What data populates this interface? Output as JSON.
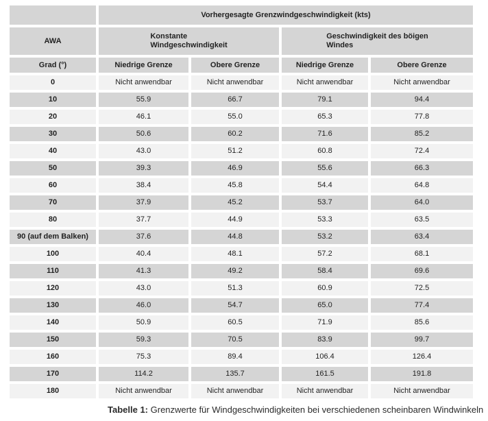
{
  "table": {
    "header": {
      "title": "Vorhergesagte Grenzwindgeschwindigkeit (kts)",
      "awa": "AWA",
      "group_constant": "Konstante\nWindgeschwindigkeit",
      "group_gust": "Geschwindigkeit des böigen\nWindes",
      "degrees": "Grad (°)",
      "sub": [
        "Niedrige Grenze",
        "Obere Grenze",
        "Niedrige Grenze",
        "Obere Grenze"
      ]
    },
    "rows": [
      {
        "awa": "0",
        "values": [
          "Nicht anwendbar",
          "Nicht anwendbar",
          "Nicht anwendbar",
          "Nicht anwendbar"
        ]
      },
      {
        "awa": "10",
        "values": [
          "55.9",
          "66.7",
          "79.1",
          "94.4"
        ]
      },
      {
        "awa": "20",
        "values": [
          "46.1",
          "55.0",
          "65.3",
          "77.8"
        ]
      },
      {
        "awa": "30",
        "values": [
          "50.6",
          "60.2",
          "71.6",
          "85.2"
        ]
      },
      {
        "awa": "40",
        "values": [
          "43.0",
          "51.2",
          "60.8",
          "72.4"
        ]
      },
      {
        "awa": "50",
        "values": [
          "39.3",
          "46.9",
          "55.6",
          "66.3"
        ]
      },
      {
        "awa": "60",
        "values": [
          "38.4",
          "45.8",
          "54.4",
          "64.8"
        ]
      },
      {
        "awa": "70",
        "values": [
          "37.9",
          "45.2",
          "53.7",
          "64.0"
        ]
      },
      {
        "awa": "80",
        "values": [
          "37.7",
          "44.9",
          "53.3",
          "63.5"
        ]
      },
      {
        "awa": "90 (auf dem Balken)",
        "values": [
          "37.6",
          "44.8",
          "53.2",
          "63.4"
        ]
      },
      {
        "awa": "100",
        "values": [
          "40.4",
          "48.1",
          "57.2",
          "68.1"
        ]
      },
      {
        "awa": "110",
        "values": [
          "41.3",
          "49.2",
          "58.4",
          "69.6"
        ]
      },
      {
        "awa": "120",
        "values": [
          "43.0",
          "51.3",
          "60.9",
          "72.5"
        ]
      },
      {
        "awa": "130",
        "values": [
          "46.0",
          "54.7",
          "65.0",
          "77.4"
        ]
      },
      {
        "awa": "140",
        "values": [
          "50.9",
          "60.5",
          "71.9",
          "85.6"
        ]
      },
      {
        "awa": "150",
        "values": [
          "59.3",
          "70.5",
          "83.9",
          "99.7"
        ]
      },
      {
        "awa": "160",
        "values": [
          "75.3",
          "89.4",
          "106.4",
          "126.4"
        ]
      },
      {
        "awa": "170",
        "values": [
          "114.2",
          "135.7",
          "161.5",
          "191.8"
        ]
      },
      {
        "awa": "180",
        "values": [
          "Nicht anwendbar",
          "Nicht anwendbar",
          "Nicht anwendbar",
          "Nicht anwendbar"
        ]
      }
    ]
  },
  "caption": {
    "label": "Tabelle 1:",
    "text": "Grenzwerte für Windgeschwindigkeiten bei verschiedenen scheinbaren Windwinkeln"
  },
  "colors": {
    "header_bg": "#d5d5d5",
    "row_alt_bg": "#d5d5d5",
    "row_bg": "#f2f2f2"
  }
}
